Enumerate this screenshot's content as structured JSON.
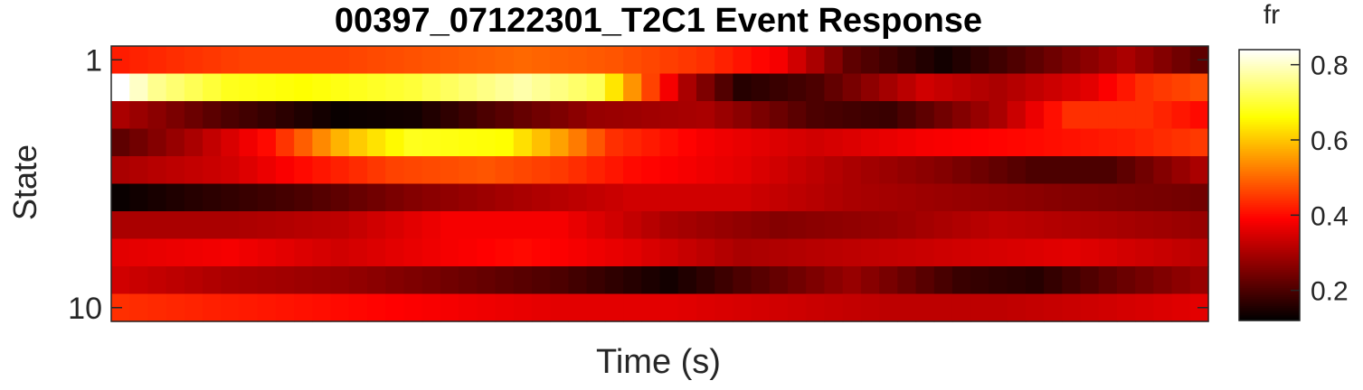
{
  "chart_data": {
    "type": "heatmap",
    "title": "00397_07122301_T2C1 Event Response",
    "xlabel": "Time (s)",
    "ylabel": "State",
    "y_tick_labels": [
      "1",
      "10"
    ],
    "y_tick_rows": [
      1,
      10
    ],
    "rows": [
      "1",
      "2",
      "3",
      "4",
      "5",
      "6",
      "7",
      "8",
      "9",
      "10"
    ],
    "n_columns": 60,
    "colormap": "hot",
    "colorbar": {
      "label": "fr",
      "range": [
        0.12,
        0.84
      ],
      "ticks": [
        0.2,
        0.4,
        0.6,
        0.8
      ],
      "tick_labels": [
        "0.2",
        "0.4",
        "0.6",
        "0.8"
      ]
    },
    "row_keyframes": [
      [
        [
          0,
          0.42
        ],
        [
          7,
          0.46
        ],
        [
          12,
          0.46
        ],
        [
          17,
          0.48
        ],
        [
          22,
          0.5
        ],
        [
          27,
          0.48
        ],
        [
          32,
          0.44
        ],
        [
          36,
          0.38
        ],
        [
          40,
          0.22
        ],
        [
          45,
          0.14
        ],
        [
          50,
          0.22
        ],
        [
          55,
          0.3
        ],
        [
          59,
          0.22
        ]
      ],
      [
        [
          0,
          0.84
        ],
        [
          2,
          0.76
        ],
        [
          6,
          0.68
        ],
        [
          10,
          0.66
        ],
        [
          16,
          0.7
        ],
        [
          22,
          0.78
        ],
        [
          26,
          0.72
        ],
        [
          29,
          0.46
        ],
        [
          31,
          0.3
        ],
        [
          34,
          0.16
        ],
        [
          38,
          0.2
        ],
        [
          44,
          0.34
        ],
        [
          48,
          0.3
        ],
        [
          53,
          0.36
        ],
        [
          56,
          0.44
        ],
        [
          59,
          0.47
        ]
      ],
      [
        [
          0,
          0.3
        ],
        [
          6,
          0.2
        ],
        [
          12,
          0.13
        ],
        [
          16,
          0.14
        ],
        [
          20,
          0.2
        ],
        [
          26,
          0.28
        ],
        [
          32,
          0.3
        ],
        [
          38,
          0.2
        ],
        [
          42,
          0.18
        ],
        [
          48,
          0.3
        ],
        [
          52,
          0.44
        ],
        [
          56,
          0.44
        ],
        [
          59,
          0.4
        ]
      ],
      [
        [
          0,
          0.22
        ],
        [
          4,
          0.3
        ],
        [
          8,
          0.4
        ],
        [
          12,
          0.58
        ],
        [
          16,
          0.68
        ],
        [
          21,
          0.66
        ],
        [
          24,
          0.56
        ],
        [
          27,
          0.44
        ],
        [
          32,
          0.38
        ],
        [
          38,
          0.34
        ],
        [
          44,
          0.38
        ],
        [
          50,
          0.4
        ],
        [
          55,
          0.42
        ],
        [
          59,
          0.45
        ]
      ],
      [
        [
          0,
          0.3
        ],
        [
          6,
          0.34
        ],
        [
          10,
          0.4
        ],
        [
          15,
          0.46
        ],
        [
          20,
          0.48
        ],
        [
          24,
          0.45
        ],
        [
          28,
          0.4
        ],
        [
          34,
          0.36
        ],
        [
          40,
          0.3
        ],
        [
          45,
          0.26
        ],
        [
          50,
          0.2
        ],
        [
          54,
          0.2
        ],
        [
          59,
          0.3
        ]
      ],
      [
        [
          0,
          0.13
        ],
        [
          4,
          0.16
        ],
        [
          10,
          0.2
        ],
        [
          16,
          0.26
        ],
        [
          22,
          0.3
        ],
        [
          28,
          0.34
        ],
        [
          34,
          0.34
        ],
        [
          40,
          0.3
        ],
        [
          46,
          0.28
        ],
        [
          52,
          0.26
        ],
        [
          59,
          0.24
        ]
      ],
      [
        [
          0,
          0.3
        ],
        [
          6,
          0.3
        ],
        [
          12,
          0.32
        ],
        [
          18,
          0.38
        ],
        [
          24,
          0.38
        ],
        [
          30,
          0.3
        ],
        [
          36,
          0.26
        ],
        [
          42,
          0.28
        ],
        [
          48,
          0.32
        ],
        [
          54,
          0.3
        ],
        [
          59,
          0.28
        ]
      ],
      [
        [
          0,
          0.36
        ],
        [
          6,
          0.38
        ],
        [
          12,
          0.34
        ],
        [
          18,
          0.38
        ],
        [
          22,
          0.4
        ],
        [
          28,
          0.36
        ],
        [
          34,
          0.3
        ],
        [
          40,
          0.32
        ],
        [
          46,
          0.34
        ],
        [
          52,
          0.36
        ],
        [
          59,
          0.32
        ]
      ],
      [
        [
          0,
          0.34
        ],
        [
          6,
          0.3
        ],
        [
          12,
          0.28
        ],
        [
          18,
          0.24
        ],
        [
          24,
          0.2
        ],
        [
          30,
          0.14
        ],
        [
          34,
          0.2
        ],
        [
          40,
          0.28
        ],
        [
          46,
          0.18
        ],
        [
          50,
          0.16
        ],
        [
          54,
          0.22
        ],
        [
          59,
          0.28
        ]
      ],
      [
        [
          0,
          0.44
        ],
        [
          6,
          0.42
        ],
        [
          12,
          0.4
        ],
        [
          18,
          0.38
        ],
        [
          24,
          0.36
        ],
        [
          30,
          0.36
        ],
        [
          36,
          0.34
        ],
        [
          42,
          0.32
        ],
        [
          48,
          0.32
        ],
        [
          54,
          0.34
        ],
        [
          59,
          0.36
        ]
      ]
    ]
  }
}
